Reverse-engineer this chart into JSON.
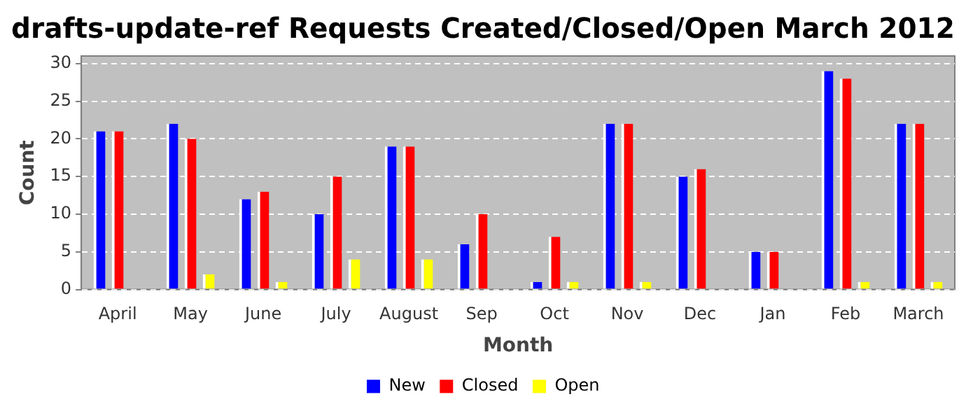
{
  "chart_data": {
    "type": "bar",
    "title": "drafts-update-ref Requests Created/Closed/Open March 2012",
    "xlabel": "Month",
    "ylabel": "Count",
    "categories": [
      "April",
      "May",
      "June",
      "July",
      "August",
      "Sep",
      "Oct",
      "Nov",
      "Dec",
      "Jan",
      "Feb",
      "March"
    ],
    "series": [
      {
        "name": "New",
        "color": "#0000ff",
        "values": [
          21,
          22,
          12,
          10,
          19,
          6,
          1,
          22,
          15,
          5,
          29,
          22
        ]
      },
      {
        "name": "Closed",
        "color": "#ff0000",
        "values": [
          21,
          20,
          13,
          15,
          19,
          10,
          7,
          22,
          16,
          5,
          28,
          22
        ]
      },
      {
        "name": "Open",
        "color": "#ffff00",
        "values": [
          0,
          2,
          1,
          4,
          4,
          0,
          1,
          1,
          0,
          0,
          1,
          1
        ]
      }
    ],
    "ylim": [
      0,
      31
    ],
    "yticks": [
      0,
      5,
      10,
      15,
      20,
      25,
      30
    ],
    "grid": "y",
    "legend": "bottom"
  }
}
